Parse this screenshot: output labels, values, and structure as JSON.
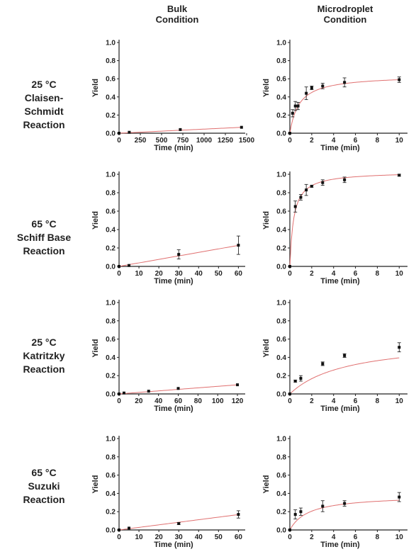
{
  "column_titles": [
    {
      "lines": [
        "Bulk",
        "Condition"
      ]
    },
    {
      "lines": [
        "Microdroplet",
        "Condition"
      ]
    }
  ],
  "row_labels": [
    {
      "lines": [
        "25 °C",
        "Claisen-",
        "Schmidt",
        "Reaction"
      ]
    },
    {
      "lines": [
        "65 °C",
        "Schiff Base",
        "Reaction"
      ]
    },
    {
      "lines": [
        "25 °C",
        "Katritzky",
        "Reaction"
      ]
    },
    {
      "lines": [
        "65 °C",
        "Suzuki",
        "Reaction"
      ]
    }
  ],
  "colors": {
    "fit_line": "#e07070",
    "points": "#111111",
    "axis": "#222222"
  },
  "chart_data": [
    {
      "type": "scatter",
      "xlabel": "Time (min)",
      "ylabel": "Yield",
      "xlim": [
        0,
        1450
      ],
      "ylim": [
        0,
        1.0
      ],
      "xticks": [
        0,
        250,
        500,
        750,
        1000,
        1250,
        1500
      ],
      "yticks": [
        0.0,
        0.2,
        0.4,
        0.6,
        0.8,
        1.0
      ],
      "x": [
        0,
        120,
        720,
        1440
      ],
      "y": [
        0.0,
        0.01,
        0.04,
        0.065
      ],
      "yerr": [
        0,
        0,
        0,
        0
      ],
      "fit": {
        "kind": "linear",
        "a": 4.5e-05
      }
    },
    {
      "type": "scatter",
      "xlabel": "Time (min)",
      "ylabel": "Yield",
      "xlim": [
        0,
        10.5
      ],
      "ylim": [
        0,
        1.0
      ],
      "xticks": [
        0,
        2,
        4,
        6,
        8,
        10
      ],
      "yticks": [
        0.0,
        0.2,
        0.4,
        0.6,
        0.8,
        1.0
      ],
      "x": [
        0,
        0.25,
        0.5,
        0.75,
        1.5,
        2,
        3,
        5,
        10
      ],
      "y": [
        0.0,
        0.22,
        0.3,
        0.3,
        0.44,
        0.5,
        0.52,
        0.56,
        0.59
      ],
      "yerr": [
        0,
        0.04,
        0.05,
        0.04,
        0.07,
        0.02,
        0.03,
        0.05,
        0.03
      ],
      "fit": {
        "kind": "saturation",
        "ymax": 0.64,
        "k": 0.85
      }
    },
    {
      "type": "scatter",
      "xlabel": "Time (min)",
      "ylabel": "Yield",
      "xlim": [
        0,
        62
      ],
      "ylim": [
        0,
        1.0
      ],
      "xticks": [
        0,
        10,
        20,
        30,
        40,
        50,
        60
      ],
      "yticks": [
        0.0,
        0.2,
        0.4,
        0.6,
        0.8,
        1.0
      ],
      "x": [
        0,
        5,
        30,
        60
      ],
      "y": [
        0.0,
        0.01,
        0.13,
        0.23
      ],
      "yerr": [
        0,
        0,
        0.05,
        0.1
      ],
      "fit": {
        "kind": "linear",
        "a": 0.0038
      }
    },
    {
      "type": "scatter",
      "xlabel": "Time (min)",
      "ylabel": "Yield",
      "xlim": [
        0,
        10.5
      ],
      "ylim": [
        0,
        1.0
      ],
      "xticks": [
        0,
        2,
        4,
        6,
        8,
        10
      ],
      "yticks": [
        0.0,
        0.2,
        0.4,
        0.6,
        0.8,
        1.0
      ],
      "x": [
        0,
        0.5,
        1,
        1.5,
        2,
        3,
        5,
        10
      ],
      "y": [
        0.0,
        0.65,
        0.75,
        0.83,
        0.87,
        0.91,
        0.94,
        0.99
      ],
      "yerr": [
        0,
        0.06,
        0.03,
        0.06,
        0.01,
        0.03,
        0.03,
        0.01
      ],
      "fit": {
        "kind": "saturation",
        "ymax": 1.03,
        "k": 0.35
      }
    },
    {
      "type": "scatter",
      "xlabel": "Time (min)",
      "ylabel": "Yield",
      "xlim": [
        0,
        125
      ],
      "ylim": [
        0,
        1.0
      ],
      "xticks": [
        0,
        20,
        40,
        60,
        80,
        100,
        120
      ],
      "yticks": [
        0.0,
        0.2,
        0.4,
        0.6,
        0.8,
        1.0
      ],
      "x": [
        0,
        5,
        30,
        60,
        120
      ],
      "y": [
        0.0,
        0.01,
        0.03,
        0.06,
        0.1
      ],
      "yerr": [
        0,
        0,
        0,
        0,
        0
      ],
      "fit": {
        "kind": "linear",
        "a": 0.00083
      }
    },
    {
      "type": "scatter",
      "xlabel": "Time (min)",
      "ylabel": "Yield",
      "xlim": [
        0,
        10.5
      ],
      "ylim": [
        0,
        1.0
      ],
      "xticks": [
        0,
        2,
        4,
        6,
        8,
        10
      ],
      "yticks": [
        0.0,
        0.2,
        0.4,
        0.6,
        0.8,
        1.0
      ],
      "x": [
        0,
        0.5,
        1,
        3,
        5,
        10
      ],
      "y": [
        0.0,
        0.14,
        0.17,
        0.33,
        0.42,
        0.51
      ],
      "yerr": [
        0,
        0.01,
        0.03,
        0.02,
        0.02,
        0.05
      ],
      "fit": {
        "kind": "saturation",
        "ymax": 0.6,
        "k": 5.2
      }
    },
    {
      "type": "scatter",
      "xlabel": "Time (min)",
      "ylabel": "Yield",
      "xlim": [
        0,
        62
      ],
      "ylim": [
        0,
        1.0
      ],
      "xticks": [
        0,
        10,
        20,
        30,
        40,
        50,
        60
      ],
      "yticks": [
        0.0,
        0.2,
        0.4,
        0.6,
        0.8,
        1.0
      ],
      "x": [
        0,
        5,
        30,
        60
      ],
      "y": [
        0.0,
        0.02,
        0.07,
        0.17
      ],
      "yerr": [
        0,
        0,
        0.01,
        0.04
      ],
      "fit": {
        "kind": "linear",
        "a": 0.0028
      }
    },
    {
      "type": "scatter",
      "xlabel": "Time (min)",
      "ylabel": "Yield",
      "xlim": [
        0,
        10.5
      ],
      "ylim": [
        0,
        1.0
      ],
      "xticks": [
        0,
        2,
        4,
        6,
        8,
        10
      ],
      "yticks": [
        0.0,
        0.2,
        0.4,
        0.6,
        0.8,
        1.0
      ],
      "x": [
        0,
        0.5,
        1,
        3,
        5,
        10
      ],
      "y": [
        0.0,
        0.17,
        0.2,
        0.26,
        0.29,
        0.36
      ],
      "yerr": [
        0,
        0.05,
        0.04,
        0.06,
        0.03,
        0.05
      ],
      "fit": {
        "kind": "saturation",
        "ymax": 0.38,
        "k": 1.7
      }
    }
  ]
}
